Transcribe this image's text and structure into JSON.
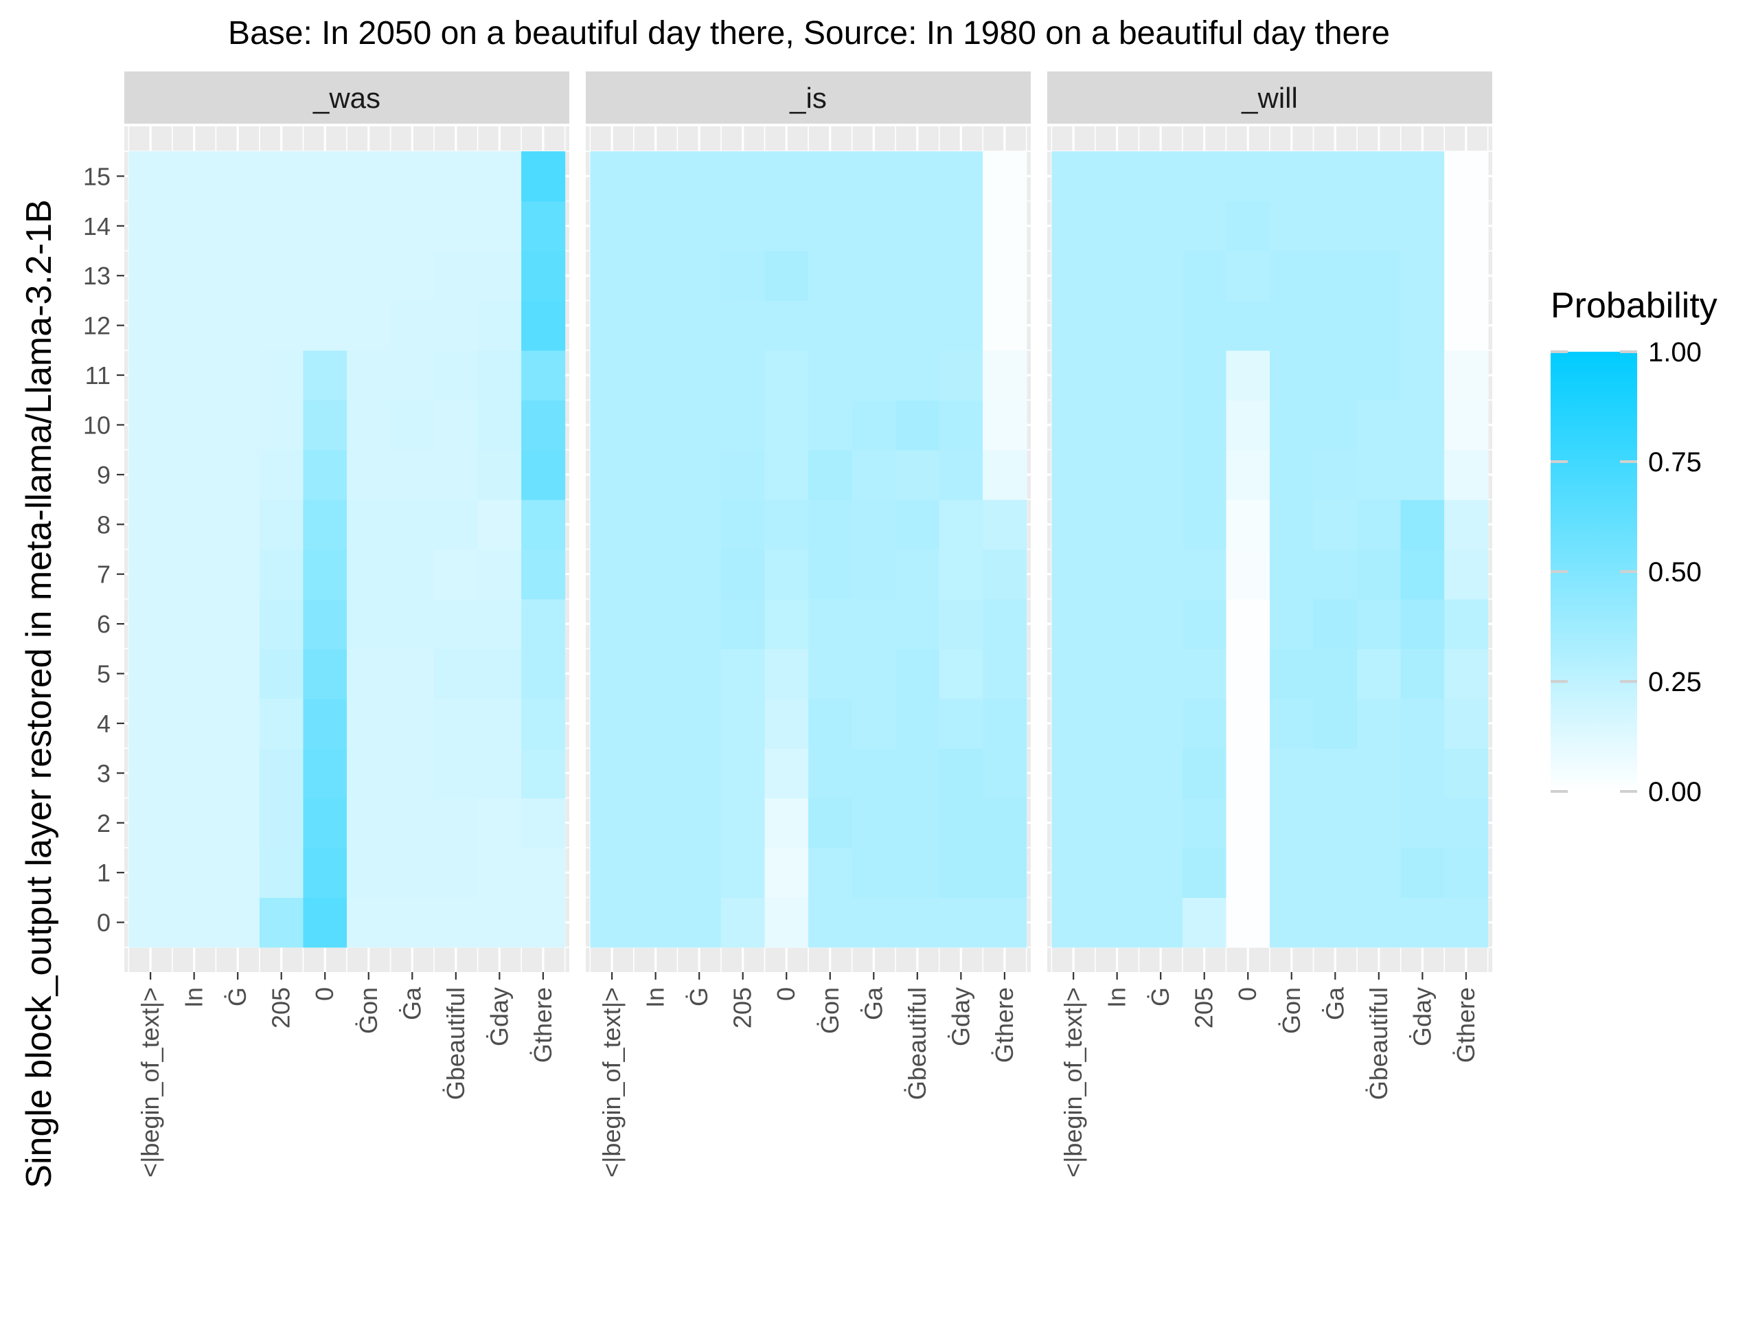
{
  "chart_data": {
    "type": "heatmap",
    "title": "Base: In 2050 on a beautiful day there, Source: In 1980 on a beautiful day there",
    "ylabel": "Single block_output layer restored in meta-llama/Llama-3.2-1B",
    "xlabel": "",
    "x_tokens": [
      "<|begin_of_text|>",
      "In",
      "Ġ",
      "205",
      "0",
      "Ġon",
      "Ġa",
      "Ġbeautiful",
      "Ġday",
      "Ġthere"
    ],
    "layers": [
      0,
      1,
      2,
      3,
      4,
      5,
      6,
      7,
      8,
      9,
      10,
      11,
      12,
      13,
      14,
      15
    ],
    "legend": {
      "title": "Probability",
      "breaks": [
        1.0,
        0.75,
        0.5,
        0.25,
        0.0
      ],
      "labels": [
        "1.00",
        "0.75",
        "0.50",
        "0.25",
        "0.00"
      ],
      "low_color": "#ffffff",
      "high_color": "#00ccff",
      "placement": "right"
    },
    "facets": [
      {
        "label": "_was",
        "values": [
          [
            0.16,
            0.16,
            0.16,
            0.38,
            0.66,
            0.16,
            0.16,
            0.16,
            0.16,
            0.16
          ],
          [
            0.16,
            0.16,
            0.16,
            0.24,
            0.62,
            0.17,
            0.17,
            0.17,
            0.16,
            0.16
          ],
          [
            0.16,
            0.16,
            0.16,
            0.23,
            0.6,
            0.17,
            0.17,
            0.17,
            0.16,
            0.18
          ],
          [
            0.16,
            0.16,
            0.16,
            0.23,
            0.58,
            0.17,
            0.17,
            0.18,
            0.18,
            0.26
          ],
          [
            0.16,
            0.16,
            0.16,
            0.22,
            0.56,
            0.17,
            0.17,
            0.18,
            0.18,
            0.28
          ],
          [
            0.16,
            0.16,
            0.16,
            0.25,
            0.52,
            0.17,
            0.17,
            0.2,
            0.2,
            0.3
          ],
          [
            0.16,
            0.16,
            0.16,
            0.24,
            0.48,
            0.18,
            0.18,
            0.18,
            0.18,
            0.3
          ],
          [
            0.16,
            0.16,
            0.16,
            0.22,
            0.46,
            0.18,
            0.18,
            0.16,
            0.17,
            0.4
          ],
          [
            0.16,
            0.16,
            0.16,
            0.2,
            0.44,
            0.18,
            0.18,
            0.18,
            0.15,
            0.42
          ],
          [
            0.16,
            0.16,
            0.16,
            0.18,
            0.4,
            0.17,
            0.17,
            0.17,
            0.19,
            0.58
          ],
          [
            0.16,
            0.16,
            0.16,
            0.17,
            0.36,
            0.17,
            0.18,
            0.17,
            0.2,
            0.56
          ],
          [
            0.16,
            0.16,
            0.16,
            0.17,
            0.32,
            0.17,
            0.17,
            0.18,
            0.2,
            0.5
          ],
          [
            0.16,
            0.16,
            0.16,
            0.16,
            0.16,
            0.16,
            0.17,
            0.17,
            0.18,
            0.66
          ],
          [
            0.16,
            0.16,
            0.16,
            0.16,
            0.16,
            0.16,
            0.16,
            0.17,
            0.17,
            0.64
          ],
          [
            0.16,
            0.16,
            0.16,
            0.16,
            0.16,
            0.16,
            0.16,
            0.16,
            0.16,
            0.62
          ],
          [
            0.16,
            0.16,
            0.16,
            0.16,
            0.16,
            0.16,
            0.16,
            0.16,
            0.16,
            0.7
          ]
        ]
      },
      {
        "label": "_is",
        "values": [
          [
            0.3,
            0.3,
            0.3,
            0.24,
            0.1,
            0.3,
            0.3,
            0.3,
            0.3,
            0.3
          ],
          [
            0.3,
            0.3,
            0.3,
            0.28,
            0.08,
            0.3,
            0.32,
            0.32,
            0.34,
            0.34
          ],
          [
            0.3,
            0.3,
            0.3,
            0.28,
            0.1,
            0.34,
            0.32,
            0.32,
            0.34,
            0.34
          ],
          [
            0.3,
            0.3,
            0.3,
            0.28,
            0.16,
            0.32,
            0.32,
            0.32,
            0.34,
            0.32
          ],
          [
            0.3,
            0.3,
            0.3,
            0.28,
            0.2,
            0.32,
            0.3,
            0.32,
            0.3,
            0.32
          ],
          [
            0.3,
            0.3,
            0.3,
            0.28,
            0.22,
            0.3,
            0.3,
            0.32,
            0.26,
            0.3
          ],
          [
            0.3,
            0.3,
            0.3,
            0.32,
            0.26,
            0.3,
            0.3,
            0.3,
            0.27,
            0.3
          ],
          [
            0.3,
            0.3,
            0.3,
            0.33,
            0.28,
            0.32,
            0.31,
            0.3,
            0.26,
            0.27
          ],
          [
            0.3,
            0.3,
            0.3,
            0.32,
            0.3,
            0.32,
            0.31,
            0.32,
            0.26,
            0.24
          ],
          [
            0.3,
            0.3,
            0.3,
            0.31,
            0.28,
            0.34,
            0.3,
            0.29,
            0.31,
            0.1
          ],
          [
            0.3,
            0.3,
            0.3,
            0.3,
            0.28,
            0.3,
            0.32,
            0.35,
            0.32,
            0.06
          ],
          [
            0.3,
            0.3,
            0.3,
            0.3,
            0.28,
            0.3,
            0.3,
            0.3,
            0.29,
            0.05
          ],
          [
            0.3,
            0.3,
            0.3,
            0.3,
            0.3,
            0.3,
            0.3,
            0.3,
            0.3,
            0.02
          ],
          [
            0.3,
            0.3,
            0.3,
            0.31,
            0.34,
            0.3,
            0.3,
            0.3,
            0.3,
            0.02
          ],
          [
            0.3,
            0.3,
            0.3,
            0.3,
            0.3,
            0.3,
            0.3,
            0.3,
            0.3,
            0.02
          ],
          [
            0.3,
            0.3,
            0.3,
            0.3,
            0.3,
            0.3,
            0.3,
            0.3,
            0.3,
            0.02
          ]
        ]
      },
      {
        "label": "_will",
        "values": [
          [
            0.3,
            0.3,
            0.3,
            0.2,
            0.01,
            0.3,
            0.3,
            0.3,
            0.3,
            0.3
          ],
          [
            0.3,
            0.3,
            0.3,
            0.34,
            0.01,
            0.3,
            0.3,
            0.3,
            0.34,
            0.32
          ],
          [
            0.3,
            0.3,
            0.3,
            0.32,
            0.01,
            0.3,
            0.3,
            0.3,
            0.31,
            0.31
          ],
          [
            0.3,
            0.3,
            0.3,
            0.34,
            0.01,
            0.3,
            0.3,
            0.3,
            0.31,
            0.29
          ],
          [
            0.3,
            0.3,
            0.3,
            0.32,
            0.01,
            0.32,
            0.34,
            0.3,
            0.31,
            0.25
          ],
          [
            0.3,
            0.3,
            0.3,
            0.3,
            0.01,
            0.34,
            0.34,
            0.28,
            0.34,
            0.24
          ],
          [
            0.3,
            0.3,
            0.3,
            0.32,
            0.01,
            0.32,
            0.35,
            0.32,
            0.37,
            0.28
          ],
          [
            0.3,
            0.3,
            0.3,
            0.3,
            0.03,
            0.32,
            0.32,
            0.34,
            0.42,
            0.2
          ],
          [
            0.3,
            0.3,
            0.3,
            0.32,
            0.04,
            0.32,
            0.3,
            0.32,
            0.44,
            0.18
          ],
          [
            0.3,
            0.3,
            0.3,
            0.32,
            0.08,
            0.32,
            0.31,
            0.3,
            0.3,
            0.1
          ],
          [
            0.3,
            0.3,
            0.3,
            0.32,
            0.1,
            0.32,
            0.32,
            0.3,
            0.3,
            0.06
          ],
          [
            0.3,
            0.3,
            0.3,
            0.32,
            0.12,
            0.32,
            0.32,
            0.32,
            0.3,
            0.05
          ],
          [
            0.3,
            0.3,
            0.3,
            0.32,
            0.32,
            0.32,
            0.32,
            0.32,
            0.3,
            0.01
          ],
          [
            0.3,
            0.3,
            0.3,
            0.32,
            0.3,
            0.32,
            0.32,
            0.32,
            0.3,
            0.01
          ],
          [
            0.3,
            0.3,
            0.3,
            0.3,
            0.32,
            0.3,
            0.3,
            0.3,
            0.3,
            0.01
          ],
          [
            0.3,
            0.3,
            0.3,
            0.3,
            0.3,
            0.3,
            0.3,
            0.3,
            0.3,
            0.01
          ]
        ]
      }
    ]
  }
}
